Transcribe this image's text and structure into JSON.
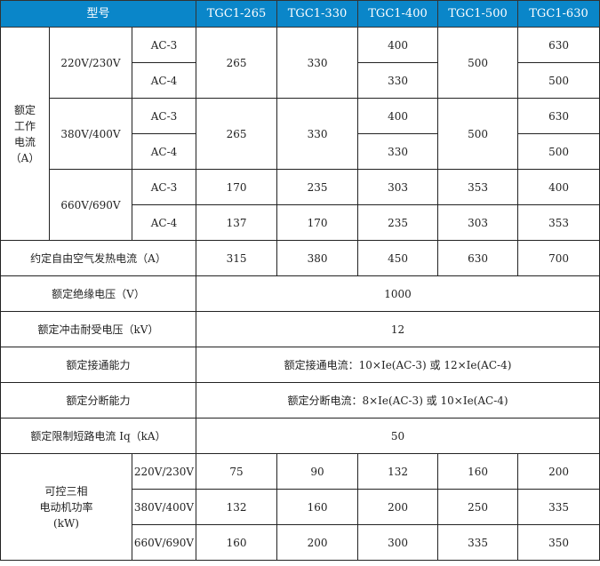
{
  "header": {
    "model_label": "型号",
    "models": [
      "TGC1-265",
      "TGC1-330",
      "TGC1-400",
      "TGC1-500",
      "TGC1-630"
    ]
  },
  "rated_current": {
    "label": "额定工作电流（A）",
    "label_lines": [
      "额定",
      "工作",
      "电流",
      "（A）"
    ],
    "groups": [
      {
        "voltage": "220V/230V",
        "ac3_label": "AC-3",
        "ac4_label": "AC-4",
        "merged": [
          "265",
          "330"
        ],
        "ac3": [
          "400"
        ],
        "ac4": [
          "330"
        ],
        "c500": "500",
        "ac3_630": "630",
        "ac4_630": "500"
      },
      {
        "voltage": "380V/400V",
        "ac3_label": "AC-3",
        "ac4_label": "AC-4",
        "merged": [
          "265",
          "330"
        ],
        "ac3": [
          "400"
        ],
        "ac4": [
          "330"
        ],
        "c500": "500",
        "ac3_630": "630",
        "ac4_630": "500"
      },
      {
        "voltage": "660V/690V",
        "ac3_label": "AC-3",
        "ac4_label": "AC-4",
        "ac3_values": [
          "170",
          "235",
          "303",
          "353",
          "400"
        ],
        "ac4_values": [
          "137",
          "170",
          "235",
          "303",
          "353"
        ]
      }
    ]
  },
  "thermal": {
    "label": "约定自由空气发热电流（A）",
    "values": [
      "315",
      "380",
      "450",
      "630",
      "700"
    ]
  },
  "insulation": {
    "label": "额定绝缘电压（V）",
    "value": "1000"
  },
  "impulse": {
    "label": "额定冲击耐受电压（kV）",
    "value": "12"
  },
  "making": {
    "label": "额定接通能力",
    "value": "额定接通电流：10×Ie(AC-3) 或 12×Ie(AC-4)"
  },
  "breaking": {
    "label": "额定分断能力",
    "value": "额定分断电流：8×Ie(AC-3) 或 10×Ie(AC-4)"
  },
  "short_circuit": {
    "label": "额定限制短路电流 Iq（kA）",
    "value": "50"
  },
  "motor_power": {
    "label_lines": [
      "可控三相",
      "电动机功率",
      "(kW)"
    ],
    "rows": [
      {
        "voltage": "220V/230V",
        "values": [
          "75",
          "90",
          "132",
          "160",
          "200"
        ]
      },
      {
        "voltage": "380V/400V",
        "values": [
          "132",
          "160",
          "200",
          "250",
          "335"
        ]
      },
      {
        "voltage": "660V/690V",
        "values": [
          "160",
          "200",
          "300",
          "335",
          "350"
        ]
      }
    ]
  },
  "colors": {
    "header_bg": "#0a86c9",
    "header_text": "#ffffff"
  }
}
